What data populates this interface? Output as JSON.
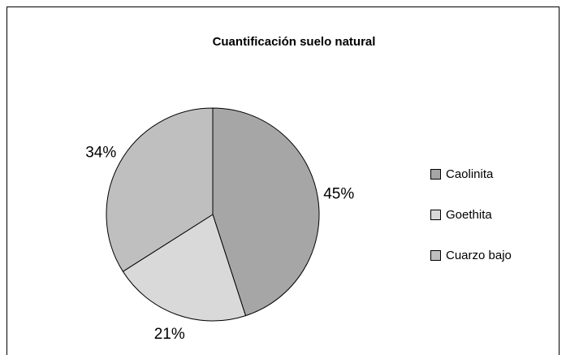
{
  "chart_data": {
    "type": "pie",
    "title": "Cuantificación suelo natural",
    "categories": [
      "Caolinita",
      "Goethita",
      "Cuarzo bajo"
    ],
    "values": [
      45,
      21,
      34
    ],
    "value_labels": [
      "45%",
      "21%",
      "34%"
    ],
    "colors": [
      "#a6a6a6",
      "#d9d9d9",
      "#bfbfbf"
    ],
    "legend": "right"
  }
}
